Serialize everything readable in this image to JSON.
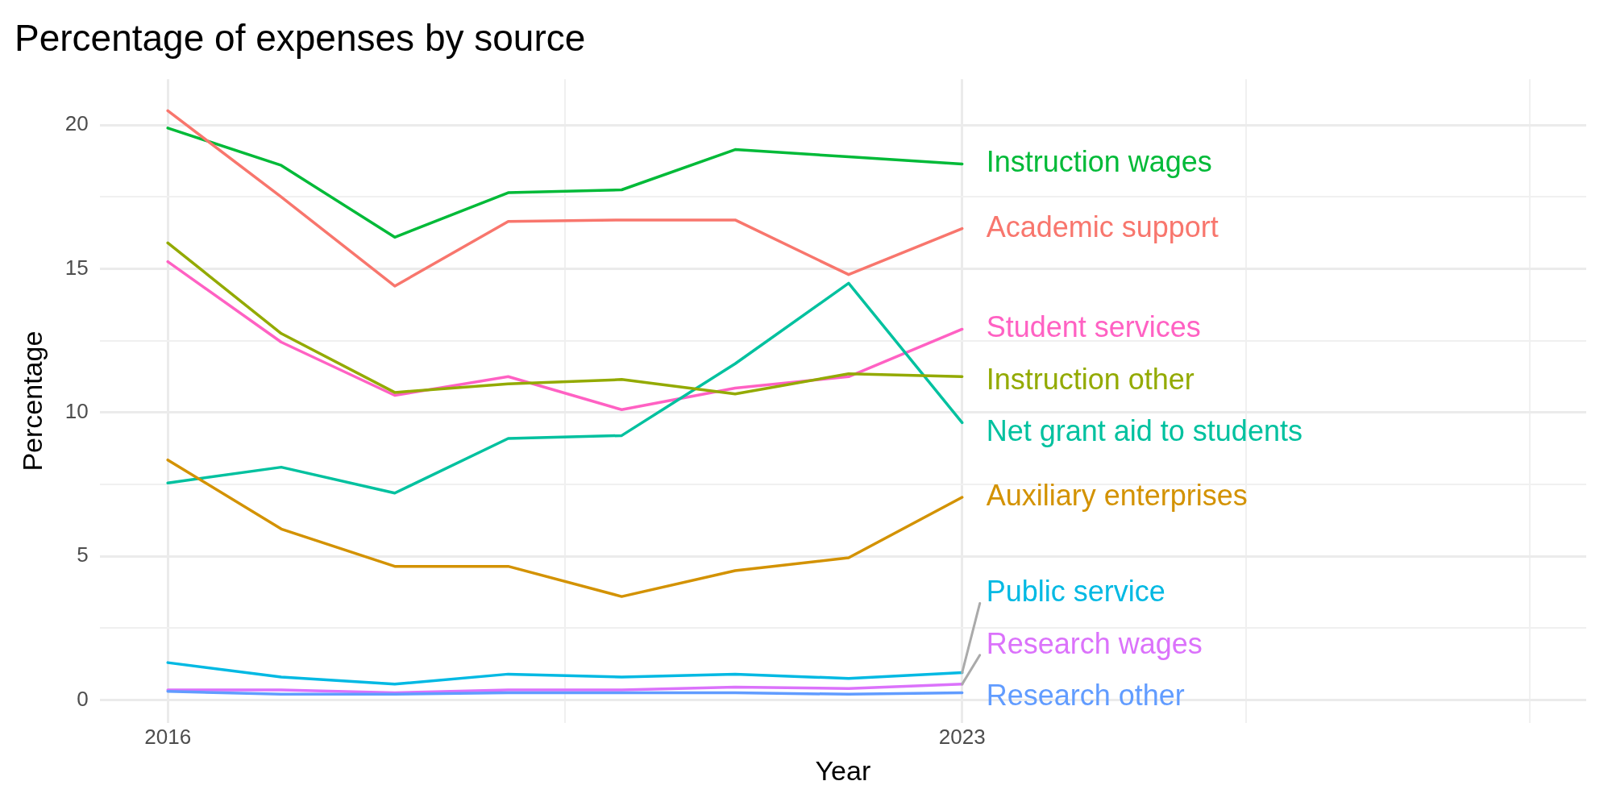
{
  "chart_data": {
    "type": "line",
    "title": "Percentage of expenses by source",
    "xlabel": "Year",
    "ylabel": "Percentage",
    "x": [
      2016,
      2017,
      2018,
      2019,
      2020,
      2021,
      2022,
      2023
    ],
    "series": [
      {
        "name": "Academic support",
        "color": "#f8766d",
        "values": [
          20.5,
          17.5,
          14.4,
          16.65,
          16.7,
          16.7,
          14.8,
          16.4
        ]
      },
      {
        "name": "Auxiliary enterprises",
        "color": "#d39200",
        "values": [
          8.35,
          5.95,
          4.65,
          4.65,
          3.6,
          4.5,
          4.95,
          7.05
        ]
      },
      {
        "name": "Instruction other",
        "color": "#93aa00",
        "values": [
          15.9,
          12.75,
          10.7,
          11.0,
          11.15,
          10.65,
          11.35,
          11.25
        ]
      },
      {
        "name": "Instruction wages",
        "color": "#00ba38",
        "values": [
          19.9,
          18.6,
          16.1,
          17.65,
          17.75,
          19.15,
          18.9,
          18.65
        ]
      },
      {
        "name": "Net grant aid to students",
        "color": "#00c19f",
        "values": [
          7.55,
          8.1,
          7.2,
          9.1,
          9.2,
          11.7,
          14.5,
          9.65
        ]
      },
      {
        "name": "Public service",
        "color": "#00b9e3",
        "values": [
          1.3,
          0.8,
          0.55,
          0.9,
          0.8,
          0.9,
          0.75,
          0.95
        ]
      },
      {
        "name": "Research other",
        "color": "#619cff",
        "values": [
          0.3,
          0.2,
          0.2,
          0.25,
          0.25,
          0.25,
          0.2,
          0.25
        ]
      },
      {
        "name": "Research wages",
        "color": "#db72fb",
        "values": [
          0.35,
          0.35,
          0.25,
          0.35,
          0.35,
          0.45,
          0.4,
          0.55
        ]
      },
      {
        "name": "Student services",
        "color": "#ff61c3",
        "values": [
          15.25,
          12.45,
          10.6,
          11.25,
          10.1,
          10.85,
          11.25,
          12.9
        ]
      }
    ],
    "xlim": [
      2015.4,
      2028.5
    ],
    "xticks": [
      2016,
      {
        "value": 2019.5,
        "label": null
      },
      2023,
      {
        "value": 2025.5,
        "label": null
      },
      {
        "value": 2028,
        "label": null
      }
    ],
    "ylim": [
      -0.8,
      21.6
    ],
    "yticks": [
      0,
      {
        "value": 2.5,
        "label": null
      },
      5,
      {
        "value": 7.5,
        "label": null
      },
      10,
      {
        "value": 12.5,
        "label": null
      },
      15,
      {
        "value": 17.5,
        "label": null
      },
      20
    ],
    "grid": true,
    "legend": false,
    "marker": "none",
    "line_style": "solid"
  }
}
